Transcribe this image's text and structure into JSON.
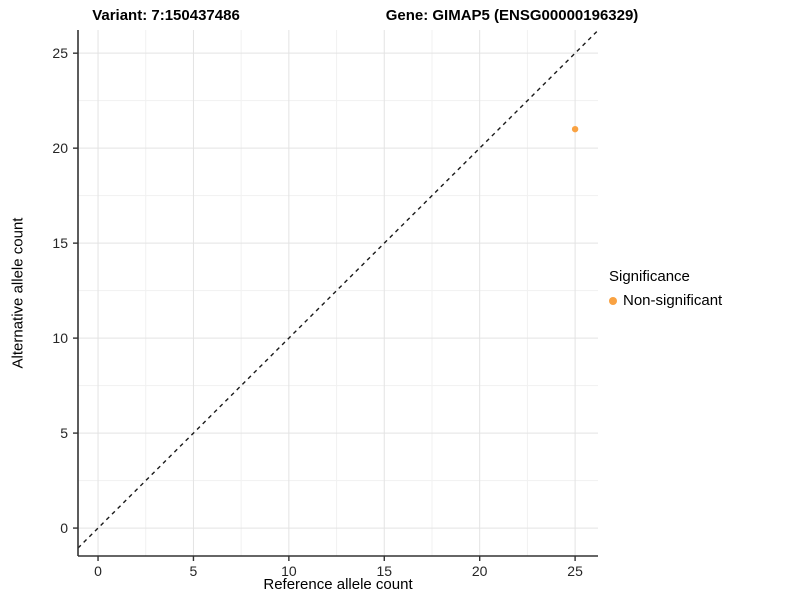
{
  "chart_data": {
    "type": "scatter",
    "titles": {
      "variant": "Variant: 7:150437486",
      "gene": "Gene: GIMAP5 (ENSG00000196329)"
    },
    "xlabel": "Reference allele count",
    "ylabel": "Alternative allele count",
    "x_ticks": [
      0,
      5,
      10,
      15,
      20,
      25
    ],
    "y_ticks": [
      0,
      5,
      10,
      15,
      20,
      25
    ],
    "minor_step": 2.5,
    "xlim": [
      -1.05,
      26.2
    ],
    "ylim": [
      -1.47,
      26.22
    ],
    "identity_line": {
      "style": "dashed",
      "slope": 1,
      "intercept": 0,
      "color": "#1a1a1a"
    },
    "points": [
      {
        "x": 25,
        "y": 21,
        "series": "Non-significant"
      }
    ],
    "legend": {
      "title": "Significance",
      "position": "right",
      "items": [
        {
          "label": "Non-significant",
          "color": "#F9A242"
        }
      ]
    },
    "grid": {
      "major_color": "#E3E3E3",
      "minor_color": "#F1F1F1"
    },
    "axis_color": "#333333"
  }
}
